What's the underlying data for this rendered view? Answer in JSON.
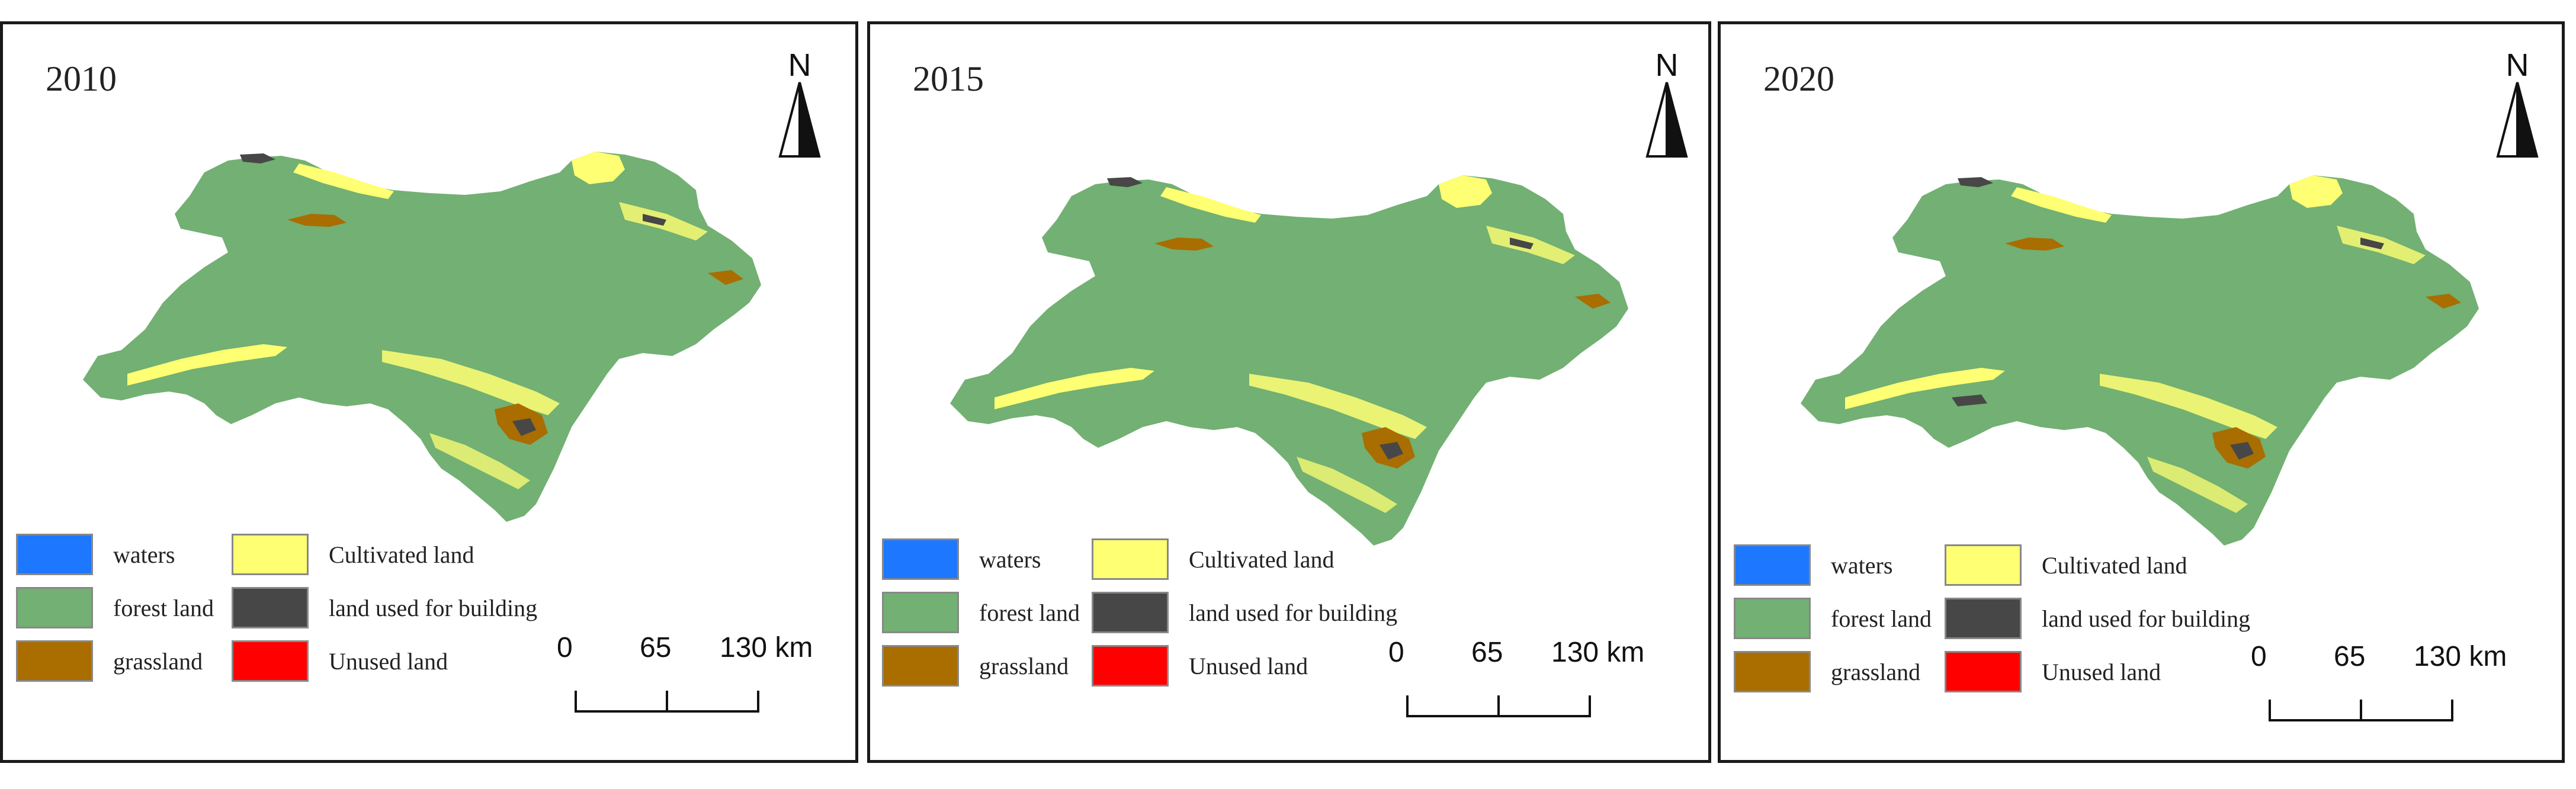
{
  "panels": [
    {
      "year": "2010"
    },
    {
      "year": "2015"
    },
    {
      "year": "2020"
    }
  ],
  "north_label": "N",
  "legend": [
    {
      "label": "waters",
      "color": "#1e78ff"
    },
    {
      "label": "forest land",
      "color": "#72b073"
    },
    {
      "label": "grassland",
      "color": "#a96d00"
    },
    {
      "label": "Cultivated land",
      "color": "#ffff73"
    },
    {
      "label": "land used for building",
      "color": "#474747"
    },
    {
      "label": "Unused land",
      "color": "#ff0000"
    }
  ],
  "scale_bar": {
    "labels": [
      "0",
      "65",
      "130 km"
    ]
  },
  "colors": {
    "forest": "#72b073",
    "cultivated": "#ffff73",
    "grassland": "#a96d00",
    "building": "#474747",
    "waters": "#1e78ff"
  }
}
